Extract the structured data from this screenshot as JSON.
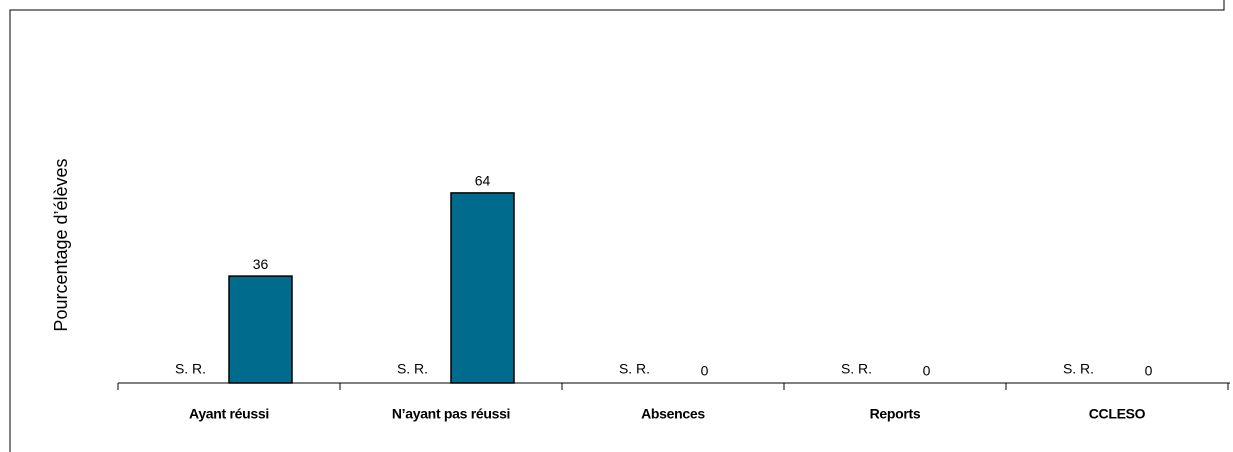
{
  "chart_data": {
    "type": "bar",
    "y_label": "Pourcentage d’élèves",
    "categories": [
      "Ayant réussi",
      "N’ayant pas réussi",
      "Absences",
      "Reports",
      "CCLESO"
    ],
    "series": [
      {
        "color": "#006b8c",
        "values": [
          null,
          null,
          null,
          null,
          null
        ],
        "value_labels": [
          "S. R.",
          "S. R.",
          "S. R.",
          "S. R.",
          "S. R."
        ]
      },
      {
        "color": "#006b8c",
        "values": [
          36,
          64,
          0,
          0,
          0
        ]
      }
    ],
    "ylim": [
      0,
      100
    ]
  }
}
